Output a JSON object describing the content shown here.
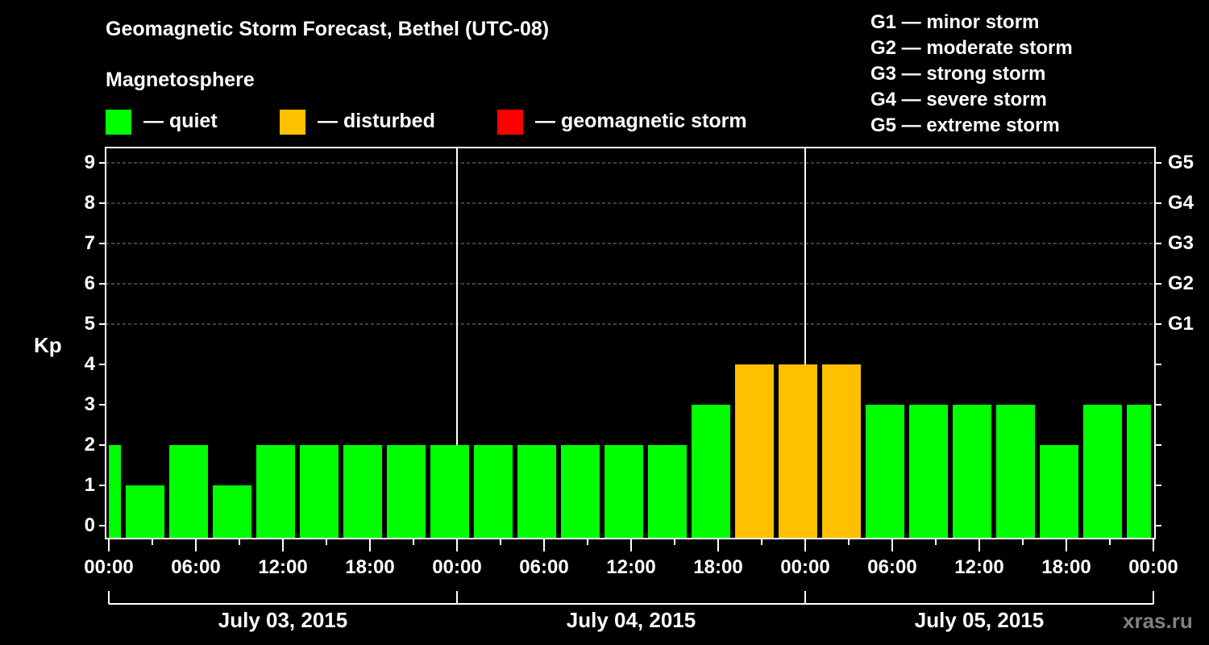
{
  "title": "Geomagnetic Storm Forecast, Bethel (UTC-08)",
  "subtitle": "Magnetosphere",
  "legend": [
    {
      "label": "— quiet",
      "color": "#00FF00"
    },
    {
      "label": "— disturbed",
      "color": "#FFC000"
    },
    {
      "label": "— geomagnetic storm",
      "color": "#FF0000"
    }
  ],
  "g_scale": [
    "G1 — minor storm",
    "G2 — moderate storm",
    "G3 — strong storm",
    "G4 — severe storm",
    "G5 — extreme storm"
  ],
  "watermark": "xras.ru",
  "chart_data": {
    "type": "bar",
    "title": "Geomagnetic Storm Forecast, Bethel (UTC-08)",
    "ylabel": "Kp",
    "ylim": [
      0,
      9
    ],
    "yticks": [
      "0",
      "1",
      "2",
      "3",
      "4",
      "5",
      "6",
      "7",
      "8",
      "9"
    ],
    "right_ticks": [
      {
        "kp": 5,
        "label": "G1"
      },
      {
        "kp": 6,
        "label": "G2"
      },
      {
        "kp": 7,
        "label": "G3"
      },
      {
        "kp": 8,
        "label": "G4"
      },
      {
        "kp": 9,
        "label": "G5"
      }
    ],
    "xtick_labels": [
      "00:00",
      "06:00",
      "12:00",
      "18:00",
      "00:00",
      "06:00",
      "12:00",
      "18:00",
      "00:00",
      "06:00",
      "12:00",
      "18:00",
      "00:00"
    ],
    "dates": [
      "July 03, 2015",
      "July 04, 2015",
      "July 05, 2015"
    ],
    "interval_hours": 3,
    "values": [
      2,
      1,
      2,
      1,
      2,
      2,
      2,
      2,
      2,
      2,
      2,
      2,
      2,
      2,
      3,
      4,
      4,
      4,
      3,
      3,
      3,
      3,
      2,
      3,
      3
    ],
    "levels": [
      "quiet",
      "quiet",
      "quiet",
      "quiet",
      "quiet",
      "quiet",
      "quiet",
      "quiet",
      "quiet",
      "quiet",
      "quiet",
      "quiet",
      "quiet",
      "quiet",
      "quiet",
      "disturbed",
      "disturbed",
      "disturbed",
      "quiet",
      "quiet",
      "quiet",
      "quiet",
      "quiet",
      "quiet",
      "quiet"
    ],
    "colors": {
      "quiet": "#00FF00",
      "disturbed": "#FFC000",
      "storm": "#FF0000"
    },
    "grid": true
  }
}
